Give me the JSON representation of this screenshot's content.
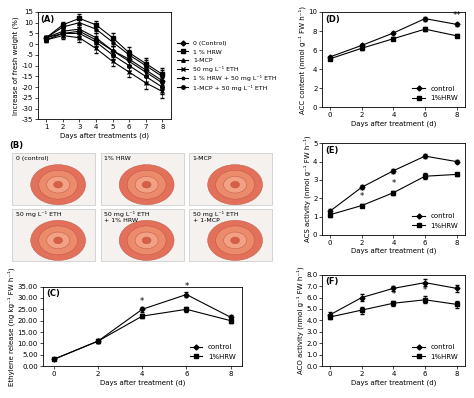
{
  "chart_data": [
    {
      "type": "line",
      "panel": "(A)",
      "x_label": "Days after treatments (d)",
      "y_label": "Increase of fresh weight (%)",
      "x": [
        1,
        2,
        3,
        4,
        5,
        6,
        7,
        8
      ],
      "xlim": [
        0.5,
        8.5
      ],
      "xticks": [
        1,
        2,
        3,
        4,
        5,
        6,
        7,
        8
      ],
      "ylim": [
        -35,
        15
      ],
      "yticks": [
        -35,
        -30,
        -25,
        -20,
        -15,
        -10,
        -5,
        0,
        5,
        10,
        15
      ],
      "legend": "right",
      "series": [
        {
          "name": "0 (Control)",
          "color": "#000000",
          "marker": "diamond",
          "values": [
            3,
            5,
            6,
            2,
            -3,
            -7,
            -12,
            -17
          ],
          "errors": [
            1,
            1.5,
            2,
            2,
            2,
            2.5,
            2.5,
            3
          ]
        },
        {
          "name": "1 % HRW",
          "color": "#000000",
          "marker": "square",
          "values": [
            3,
            9,
            12,
            9,
            3,
            -4,
            -9,
            -14
          ],
          "errors": [
            1,
            1.5,
            2,
            2,
            2,
            2.5,
            2.5,
            3
          ]
        },
        {
          "name": "1-MCP",
          "color": "#000000",
          "marker": "triangle",
          "values": [
            3,
            8,
            10,
            7,
            1,
            -5,
            -10,
            -15
          ],
          "errors": [
            1,
            1.5,
            2,
            2,
            2,
            2.5,
            2.5,
            3
          ]
        },
        {
          "name": "50 mg L⁻¹ ETH",
          "color": "#000000",
          "marker": "x",
          "values": [
            2,
            4,
            3,
            -2,
            -8,
            -13,
            -18,
            -22
          ],
          "errors": [
            1,
            1.5,
            2,
            2,
            2,
            2.5,
            3,
            3
          ]
        },
        {
          "name": "1 % HRW + 50 mg L⁻¹ ETH",
          "color": "#000000",
          "marker": "star",
          "values": [
            3,
            6,
            7,
            3,
            -3,
            -8,
            -13,
            -18
          ],
          "errors": [
            1,
            1.5,
            2,
            2,
            2,
            2.5,
            2.5,
            3
          ]
        },
        {
          "name": "1-MCP + 50 mg L⁻¹ ETH",
          "color": "#000000",
          "marker": "circle",
          "values": [
            2,
            5,
            5,
            1,
            -5,
            -10,
            -15,
            -20
          ],
          "errors": [
            1,
            1.5,
            2,
            2,
            2,
            2.5,
            3,
            3
          ]
        }
      ]
    },
    {
      "type": "image_grid",
      "panel": "(B)",
      "labels": [
        "0 (control)",
        "1% HRW",
        "1-MCP",
        "50 mg L⁻¹ ETH",
        "50 mg L⁻¹ ETH\n+ 1% HRW",
        "50 mg L⁻¹ ETH\n+ 1-MCP"
      ]
    },
    {
      "type": "line",
      "panel": "(C)",
      "x_label": "Days after treatment (d)",
      "y_label": "Ethylene release (ng kg⁻¹ FW h⁻¹)",
      "x": [
        0,
        2,
        4,
        6,
        8
      ],
      "xlim": [
        -0.5,
        8.5
      ],
      "xticks": [
        0,
        2,
        4,
        6,
        8
      ],
      "ylim": [
        0,
        35
      ],
      "yticks": [
        {
          "value": 0,
          "label": "0.00"
        },
        {
          "value": 5,
          "label": "5.00"
        },
        {
          "value": 10,
          "label": "10.00"
        },
        {
          "value": 15,
          "label": "15.00"
        },
        {
          "value": 20,
          "label": "20.00"
        },
        {
          "value": 25,
          "label": "25.00"
        },
        {
          "value": 30,
          "label": "30.00"
        },
        {
          "value": 35,
          "label": "35.00"
        }
      ],
      "legend": "lower right",
      "series": [
        {
          "name": "control",
          "color": "#000000",
          "marker": "diamond",
          "values": [
            3,
            11,
            25,
            31.5,
            21.5
          ],
          "errors": [
            0.3,
            0.8,
            1,
            1.2,
            1
          ]
        },
        {
          "name": "1%HRW",
          "color": "#000000",
          "marker": "square",
          "values": [
            3,
            11,
            22,
            25,
            20
          ],
          "errors": [
            0.3,
            0.8,
            1,
            1,
            1
          ]
        }
      ],
      "annotations": [
        {
          "x": 4,
          "y": 26.5,
          "text": "*"
        },
        {
          "x": 6,
          "y": 33,
          "text": "*"
        }
      ]
    },
    {
      "type": "line",
      "panel": "(D)",
      "x_label": "Days after treatment (d)",
      "y_label": "ACC content (nmol g⁻¹ FW h⁻¹)",
      "x": [
        0,
        2,
        4,
        6,
        8
      ],
      "xlim": [
        -0.5,
        8.5
      ],
      "xticks": [
        0,
        2,
        4,
        6,
        8
      ],
      "ylim": [
        0,
        10
      ],
      "yticks": [
        0,
        2,
        4,
        6,
        8,
        10
      ],
      "legend": "lower right",
      "series": [
        {
          "name": "control",
          "color": "#000000",
          "marker": "diamond",
          "values": [
            5.3,
            6.5,
            7.8,
            9.3,
            8.7
          ],
          "errors": [
            0.1,
            0.15,
            0.15,
            0.2,
            0.15
          ]
        },
        {
          "name": "1%HRW",
          "color": "#000000",
          "marker": "square",
          "values": [
            5.1,
            6.2,
            7.2,
            8.2,
            7.5
          ],
          "errors": [
            0.1,
            0.15,
            0.15,
            0.2,
            0.15
          ]
        }
      ],
      "annotations": [
        {
          "x": 8,
          "y": 9.2,
          "text": "**"
        }
      ]
    },
    {
      "type": "line",
      "panel": "(E)",
      "x_label": "Days after treatment (d)",
      "y_label": "ACS activity (nmol g⁻¹ FW h⁻¹)",
      "x": [
        0,
        2,
        4,
        6,
        8
      ],
      "xlim": [
        -0.5,
        8.5
      ],
      "xticks": [
        0,
        2,
        4,
        6,
        8
      ],
      "ylim": [
        0,
        5
      ],
      "yticks": [
        0,
        1,
        2,
        3,
        4,
        5
      ],
      "legend": "lower right",
      "series": [
        {
          "name": "control",
          "color": "#000000",
          "marker": "diamond",
          "values": [
            1.3,
            2.6,
            3.5,
            4.3,
            4.0
          ],
          "errors": [
            0.1,
            0.1,
            0.1,
            0.1,
            0.1
          ]
        },
        {
          "name": "1%HRW",
          "color": "#000000",
          "marker": "square",
          "values": [
            1.1,
            1.6,
            2.3,
            3.2,
            3.3
          ],
          "errors": [
            0.1,
            0.1,
            0.1,
            0.15,
            0.1
          ]
        }
      ],
      "annotations": [
        {
          "x": 2,
          "y": 1.85,
          "text": "*"
        },
        {
          "x": 4,
          "y": 2.55,
          "text": "*"
        }
      ]
    },
    {
      "type": "line",
      "panel": "(F)",
      "x_label": "Days after treatment (d)",
      "y_label": "ACO activity (nmol g⁻¹ FW h⁻¹)",
      "x": [
        0,
        2,
        4,
        6,
        8
      ],
      "xlim": [
        -0.5,
        8.5
      ],
      "xticks": [
        0,
        2,
        4,
        6,
        8
      ],
      "ylim": [
        0,
        8
      ],
      "yticks": [
        {
          "value": 0,
          "label": "0.0"
        },
        {
          "value": 1,
          "label": "1.0"
        },
        {
          "value": 2,
          "label": "2.0"
        },
        {
          "value": 3,
          "label": "3.0"
        },
        {
          "value": 4,
          "label": "4.0"
        },
        {
          "value": 5,
          "label": "5.0"
        },
        {
          "value": 6,
          "label": "6.0"
        },
        {
          "value": 7,
          "label": "7.0"
        },
        {
          "value": 8,
          "label": "8.0"
        }
      ],
      "legend": "lower right",
      "series": [
        {
          "name": "control",
          "color": "#000000",
          "marker": "diamond",
          "values": [
            4.5,
            6.0,
            6.8,
            7.3,
            6.8
          ],
          "errors": [
            0.2,
            0.3,
            0.2,
            0.3,
            0.3
          ]
        },
        {
          "name": "1%HRW",
          "color": "#000000",
          "marker": "square",
          "values": [
            4.3,
            4.9,
            5.5,
            5.8,
            5.4
          ],
          "errors": [
            0.2,
            0.3,
            0.2,
            0.3,
            0.3
          ]
        }
      ],
      "annotations": [
        {
          "x": 2,
          "y": 5.3,
          "text": "*"
        },
        {
          "x": 4,
          "y": 5.85,
          "text": "*"
        },
        {
          "x": 6,
          "y": 6.2,
          "text": "*"
        }
      ]
    }
  ]
}
